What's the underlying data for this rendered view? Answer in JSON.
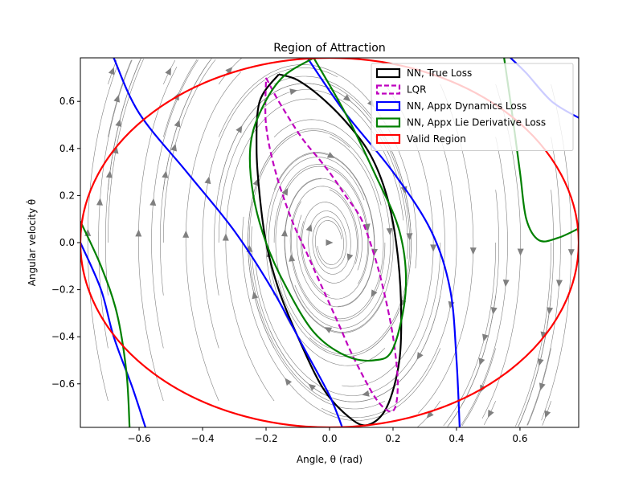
{
  "chart_data": {
    "type": "line",
    "title": "Region of Attraction",
    "xlabel": "Angle, θ (rad)",
    "ylabel": "Angular velocity θ̇",
    "xlim": [
      -0.785,
      0.785
    ],
    "ylim": [
      -0.785,
      0.785
    ],
    "xticks": [
      -0.6,
      -0.4,
      -0.2,
      0.0,
      0.2,
      0.4,
      0.6
    ],
    "xtick_labels": [
      "−0.6",
      "−0.4",
      "−0.2",
      "0.0",
      "0.2",
      "0.4",
      "0.6"
    ],
    "yticks": [
      -0.6,
      -0.4,
      -0.2,
      0.0,
      0.2,
      0.4,
      0.6
    ],
    "ytick_labels": [
      "−0.6",
      "−0.4",
      "−0.2",
      "0.0",
      "0.2",
      "0.4",
      "0.6"
    ],
    "grid": false,
    "legend_position": "top-right",
    "background_streamlines": {
      "color": "#808080",
      "style": "streamplot with arrows"
    },
    "series": [
      {
        "name": "NN, True Loss",
        "color": "#000000",
        "style": "solid",
        "points": [
          [
            -0.16,
            0.715
          ],
          [
            -0.1,
            0.69
          ],
          [
            -0.02,
            0.61
          ],
          [
            0.06,
            0.5
          ],
          [
            0.13,
            0.37
          ],
          [
            0.18,
            0.2
          ],
          [
            0.21,
            0.0
          ],
          [
            0.225,
            -0.25
          ],
          [
            0.22,
            -0.5
          ],
          [
            0.18,
            -0.7
          ],
          [
            0.12,
            -0.775
          ],
          [
            0.06,
            -0.74
          ],
          [
            -0.02,
            -0.62
          ],
          [
            -0.1,
            -0.4
          ],
          [
            -0.16,
            -0.2
          ],
          [
            -0.2,
            0.0
          ],
          [
            -0.22,
            0.2
          ],
          [
            -0.23,
            0.4
          ],
          [
            -0.22,
            0.6
          ],
          [
            -0.16,
            0.715
          ]
        ]
      },
      {
        "name": "LQR",
        "color": "#bf00bf",
        "style": "dashed",
        "points": [
          [
            -0.2,
            0.7
          ],
          [
            -0.16,
            0.6
          ],
          [
            -0.09,
            0.45
          ],
          [
            -0.03,
            0.35
          ],
          [
            0.01,
            0.28
          ],
          [
            0.05,
            0.2
          ],
          [
            0.1,
            0.1
          ],
          [
            0.14,
            -0.05
          ],
          [
            0.17,
            -0.2
          ],
          [
            0.2,
            -0.4
          ],
          [
            0.215,
            -0.6
          ],
          [
            0.2,
            -0.715
          ],
          [
            0.15,
            -0.67
          ],
          [
            0.08,
            -0.5
          ],
          [
            0.03,
            -0.35
          ],
          [
            -0.02,
            -0.2
          ],
          [
            -0.07,
            -0.05
          ],
          [
            -0.12,
            0.1
          ],
          [
            -0.17,
            0.3
          ],
          [
            -0.2,
            0.5
          ],
          [
            -0.2,
            0.7
          ]
        ]
      },
      {
        "name": "NN, Appx Dynamics Loss",
        "color": "#0000ff",
        "style": "solid",
        "segments": [
          [
            [
              -0.68,
              0.785
            ],
            [
              -0.6,
              0.55
            ],
            [
              -0.45,
              0.3
            ],
            [
              -0.3,
              0.05
            ],
            [
              -0.18,
              -0.2
            ],
            [
              -0.08,
              -0.45
            ],
            [
              0.0,
              -0.65
            ],
            [
              0.04,
              -0.785
            ]
          ],
          [
            [
              -0.785,
              0.0
            ],
            [
              -0.72,
              -0.2
            ],
            [
              -0.68,
              -0.4
            ],
            [
              -0.62,
              -0.62
            ],
            [
              -0.58,
              -0.785
            ]
          ],
          [
            [
              -0.07,
              0.785
            ],
            [
              0.05,
              0.55
            ],
            [
              0.2,
              0.3
            ],
            [
              0.32,
              0.05
            ],
            [
              0.38,
              -0.2
            ],
            [
              0.4,
              -0.5
            ],
            [
              0.41,
              -0.785
            ]
          ],
          [
            [
              0.57,
              0.785
            ],
            [
              0.62,
              0.72
            ],
            [
              0.7,
              0.6
            ],
            [
              0.785,
              0.53
            ]
          ]
        ]
      },
      {
        "name": "NN, Appx Lie Derivative Loss",
        "color": "#008000",
        "style": "solid",
        "segments": [
          [
            [
              -0.05,
              0.785
            ],
            [
              0.05,
              0.55
            ],
            [
              0.14,
              0.3
            ],
            [
              0.22,
              0.05
            ],
            [
              0.24,
              -0.2
            ],
            [
              0.2,
              -0.45
            ],
            [
              0.14,
              -0.5
            ],
            [
              0.05,
              -0.48
            ],
            [
              -0.05,
              -0.38
            ],
            [
              -0.14,
              -0.18
            ],
            [
              -0.2,
              0.0
            ],
            [
              -0.24,
              0.2
            ],
            [
              -0.25,
              0.4
            ],
            [
              -0.22,
              0.55
            ],
            [
              -0.15,
              0.7
            ],
            [
              -0.05,
              0.785
            ]
          ],
          [
            [
              -0.785,
              0.09
            ],
            [
              -0.72,
              -0.1
            ],
            [
              -0.67,
              -0.3
            ],
            [
              -0.64,
              -0.55
            ],
            [
              -0.63,
              -0.785
            ]
          ],
          [
            [
              0.55,
              0.785
            ],
            [
              0.57,
              0.6
            ],
            [
              0.6,
              0.3
            ],
            [
              0.62,
              0.1
            ],
            [
              0.66,
              0.01
            ],
            [
              0.72,
              0.02
            ],
            [
              0.785,
              0.06
            ]
          ]
        ]
      },
      {
        "name": "Valid Region",
        "color": "#ff0000",
        "style": "solid",
        "shape": "ellipse",
        "center": [
          0.0,
          0.0
        ],
        "radii": [
          0.785,
          0.785
        ]
      }
    ]
  }
}
